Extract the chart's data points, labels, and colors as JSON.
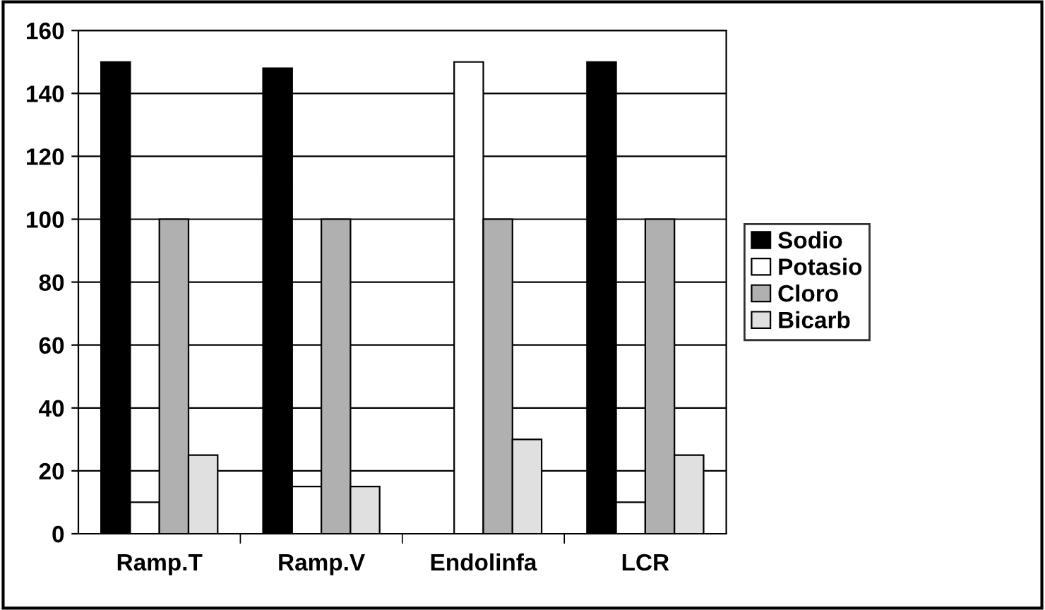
{
  "chart_data": {
    "type": "bar",
    "categories": [
      "Ramp.T",
      "Ramp.V",
      "Endolinfa",
      "LCR"
    ],
    "series": [
      {
        "name": "Sodio",
        "color": "#000000",
        "values": [
          150,
          148,
          null,
          150
        ]
      },
      {
        "name": "Potasio",
        "color": "#ffffff",
        "values": [
          10,
          15,
          150,
          10
        ]
      },
      {
        "name": "Cloro",
        "color": "#b0b0b0",
        "values": [
          100,
          100,
          100,
          100
        ]
      },
      {
        "name": "Bicarb",
        "color": "#e0e0e0",
        "values": [
          25,
          15,
          30,
          25
        ]
      }
    ],
    "ylim": [
      0,
      160
    ],
    "yticks": [
      0,
      20,
      40,
      60,
      80,
      100,
      120,
      140,
      160
    ],
    "grid": "y",
    "legend": "right"
  }
}
